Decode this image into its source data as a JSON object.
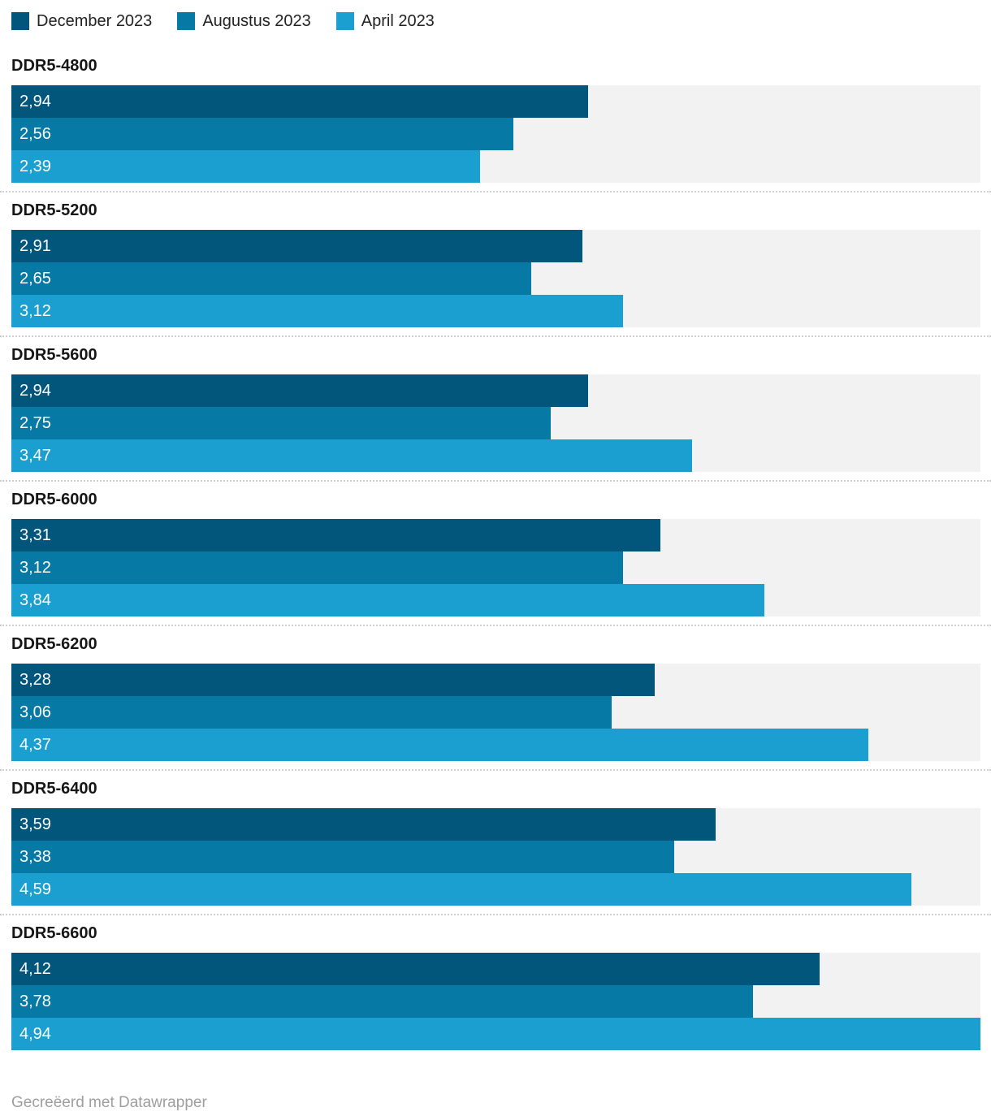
{
  "chart_data": {
    "type": "bar",
    "orientation": "horizontal",
    "grouped": true,
    "categories": [
      "DDR5-4800",
      "DDR5-5200",
      "DDR5-5600",
      "DDR5-6000",
      "DDR5-6200",
      "DDR5-6400",
      "DDR5-6600"
    ],
    "series": [
      {
        "name": "December 2023",
        "values": [
          2.94,
          2.91,
          2.94,
          3.31,
          3.28,
          3.59,
          4.12
        ]
      },
      {
        "name": "Augustus 2023",
        "values": [
          2.56,
          2.65,
          2.75,
          3.12,
          3.06,
          3.38,
          3.78
        ]
      },
      {
        "name": "April 2023",
        "values": [
          2.39,
          3.12,
          3.47,
          3.84,
          4.37,
          4.59,
          4.94
        ]
      }
    ],
    "colors": [
      "#02567c",
      "#0679a4",
      "#1b9fd0"
    ],
    "track_color": "#f2f2f2",
    "separator_color": "#cfcfcf",
    "xlim": [
      0,
      4.94
    ],
    "decimal_separator": ",",
    "value_labels": "inside-start, white",
    "legend_position": "top",
    "grid": false,
    "title": "",
    "xlabel": "",
    "ylabel": ""
  },
  "footer": {
    "credit": "Gecreëerd met Datawrapper"
  }
}
